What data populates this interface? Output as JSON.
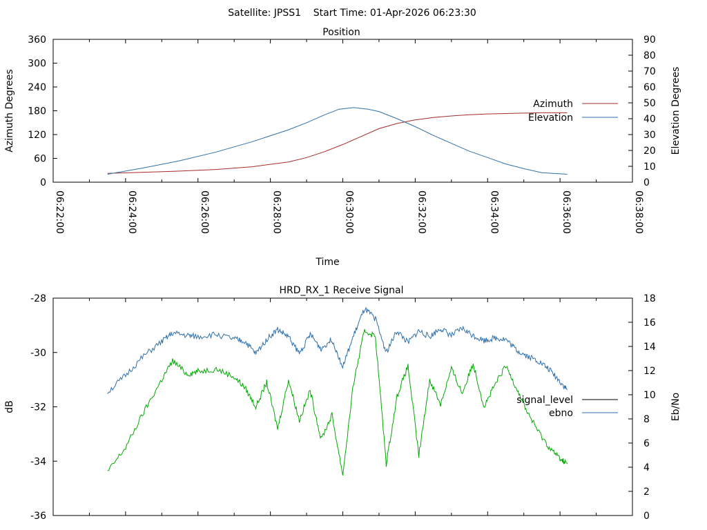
{
  "page_title": "Satellite: JPSS1    Start Time: 01-Apr-2026 06:23:30",
  "colors": {
    "azimuth": "#a52a2a",
    "elevation": "#2f6fa8",
    "signal_level": "#00a800",
    "ebno": "#2f6fa8",
    "signal_key": "#000000"
  },
  "chart_data": [
    {
      "type": "line",
      "title": "Position",
      "xlabel": "Time",
      "ylabel": "Azimuth Degrees",
      "y2label": "Elevation Degrees",
      "x_tick_labels": [
        "06:22:00",
        "06:24:00",
        "06:26:00",
        "06:28:00",
        "06:30:00",
        "06:32:00",
        "06:34:00",
        "06:36:00",
        "06:38:00"
      ],
      "xlim_minutes": [
        0,
        16
      ],
      "ylim": [
        0,
        360
      ],
      "y_ticks": [
        0,
        60,
        120,
        180,
        240,
        300,
        360
      ],
      "y2lim": [
        0,
        90
      ],
      "y2_ticks": [
        0,
        10,
        20,
        30,
        40,
        50,
        60,
        70,
        80,
        90
      ],
      "legend_position": "right",
      "series": [
        {
          "name": "Azimuth",
          "axis": "y",
          "x_minutes": [
            1.5,
            2.5,
            3.5,
            4.5,
            5.5,
            6.5,
            7.0,
            7.5,
            8.0,
            8.5,
            9.0,
            9.5,
            10.0,
            10.5,
            11.0,
            11.5,
            12.0,
            12.5,
            13.0,
            13.5,
            14.2
          ],
          "values": [
            22,
            25,
            28,
            32,
            39,
            51,
            62,
            77,
            95,
            115,
            135,
            148,
            157,
            163,
            167,
            170,
            172,
            173,
            174,
            175,
            175
          ]
        },
        {
          "name": "Elevation",
          "axis": "y2",
          "x_minutes": [
            1.5,
            2.5,
            3.5,
            4.5,
            5.5,
            6.5,
            7.0,
            7.5,
            7.9,
            8.3,
            8.7,
            9.0,
            9.5,
            10.0,
            10.5,
            11.0,
            11.5,
            12.0,
            12.5,
            13.0,
            13.5,
            14.2
          ],
          "values": [
            5,
            9,
            13.5,
            19,
            25.5,
            33,
            37.5,
            42.5,
            46,
            47,
            46,
            44.5,
            40,
            35,
            29.5,
            24.5,
            19.5,
            15.5,
            11.5,
            8.5,
            6,
            5
          ]
        }
      ]
    },
    {
      "type": "line",
      "title": "HRD_RX_1 Receive Signal",
      "ylabel": "dB",
      "y2label": "Eb/No",
      "xlim_minutes": [
        0,
        16
      ],
      "ylim": [
        -36,
        -28
      ],
      "y_ticks": [
        -36,
        -34,
        -32,
        -30,
        -28
      ],
      "y2lim": [
        0,
        18
      ],
      "y2_ticks": [
        0,
        2,
        4,
        6,
        8,
        10,
        12,
        14,
        16,
        18
      ],
      "legend_position": "right",
      "series": [
        {
          "name": "signal_level",
          "axis": "y",
          "x_minutes": [
            1.5,
            2.0,
            2.5,
            3.0,
            3.3,
            3.7,
            4.0,
            4.5,
            5.0,
            5.3,
            5.6,
            5.9,
            6.2,
            6.5,
            6.8,
            7.1,
            7.4,
            7.7,
            8.0,
            8.3,
            8.6,
            8.9,
            9.2,
            9.5,
            9.8,
            10.1,
            10.4,
            10.7,
            11.0,
            11.3,
            11.6,
            11.9,
            12.2,
            12.5,
            12.8,
            13.1,
            13.4,
            13.7,
            14.0,
            14.2
          ],
          "values": [
            -34.4,
            -33.5,
            -32.2,
            -31.0,
            -30.3,
            -30.8,
            -30.7,
            -30.6,
            -30.9,
            -31.3,
            -32.0,
            -31.1,
            -32.8,
            -31.0,
            -32.5,
            -31.4,
            -33.2,
            -32.3,
            -34.5,
            -31.1,
            -29.2,
            -29.4,
            -34.1,
            -31.6,
            -30.5,
            -33.8,
            -31.0,
            -31.9,
            -30.6,
            -31.5,
            -30.4,
            -32.0,
            -31.2,
            -30.5,
            -31.3,
            -32.2,
            -32.9,
            -33.5,
            -33.9,
            -34.1
          ]
        },
        {
          "name": "ebno",
          "axis": "y2",
          "x_minutes": [
            1.5,
            2.0,
            2.5,
            3.0,
            3.3,
            3.7,
            4.0,
            4.5,
            5.0,
            5.3,
            5.6,
            5.9,
            6.2,
            6.5,
            6.8,
            7.1,
            7.4,
            7.7,
            8.0,
            8.3,
            8.6,
            8.9,
            9.2,
            9.5,
            9.8,
            10.1,
            10.4,
            10.7,
            11.0,
            11.3,
            11.6,
            11.9,
            12.2,
            12.5,
            12.8,
            13.1,
            13.4,
            13.7,
            14.0,
            14.2
          ],
          "values": [
            10.2,
            11.6,
            13.2,
            14.4,
            15.1,
            14.9,
            14.8,
            15.0,
            14.6,
            14.4,
            13.4,
            14.6,
            15.4,
            14.8,
            13.4,
            15.0,
            13.8,
            14.6,
            12.3,
            14.9,
            17.1,
            16.3,
            13.5,
            15.3,
            14.3,
            15.3,
            14.8,
            15.5,
            14.9,
            15.5,
            14.9,
            14.5,
            14.7,
            14.6,
            13.7,
            13.2,
            12.8,
            12.1,
            11.1,
            10.4
          ]
        }
      ]
    }
  ]
}
